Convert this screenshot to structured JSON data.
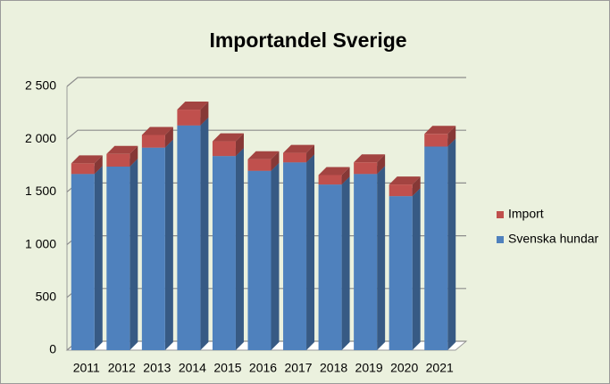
{
  "chart_data": {
    "type": "bar3d_stacked",
    "title": "Importandel Sverige",
    "categories": [
      "2011",
      "2012",
      "2013",
      "2014",
      "2015",
      "2016",
      "2017",
      "2018",
      "2019",
      "2020",
      "2021"
    ],
    "series": [
      {
        "name": "Svenska hundar",
        "color": "#4f81bd",
        "values": [
          1670,
          1740,
          1920,
          2130,
          1840,
          1700,
          1780,
          1570,
          1670,
          1460,
          1930
        ]
      },
      {
        "name": "Import",
        "color": "#c0504d",
        "values": [
          100,
          120,
          120,
          150,
          140,
          110,
          90,
          90,
          110,
          110,
          120
        ]
      }
    ],
    "ylim": [
      0,
      2500
    ],
    "yticks": [
      0,
      500,
      {
        "value": 1000,
        "label": "1 000"
      },
      {
        "value": 1500,
        "label": "1 500"
      },
      {
        "value": 2000,
        "label": "2 000"
      },
      {
        "value": 2500,
        "label": "2 500"
      }
    ],
    "grid": true,
    "legend": "right"
  }
}
